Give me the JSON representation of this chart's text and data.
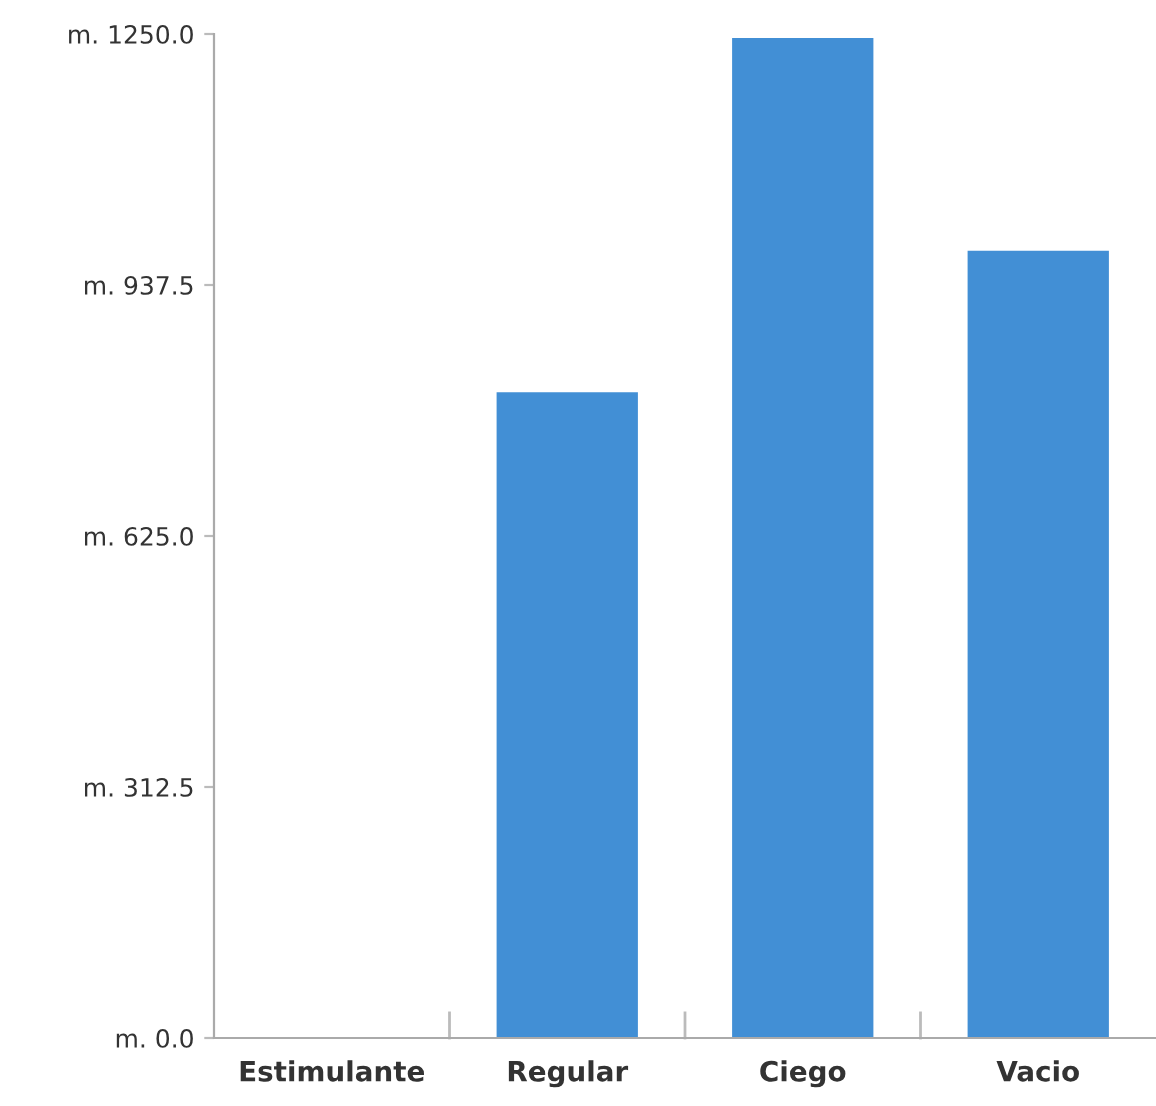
{
  "chart_data": {
    "type": "bar",
    "categories": [
      "Estimulante",
      "Regular",
      "Ciego",
      "Vacio"
    ],
    "values": [
      0,
      804,
      1245,
      980
    ],
    "color": "#428fd5",
    "ylim": [
      0,
      1250
    ],
    "yticks": [
      {
        "value": 0,
        "label": "m. 0.0"
      },
      {
        "value": 312.5,
        "label": "m. 312.5"
      },
      {
        "value": 625,
        "label": "m. 625.0"
      },
      {
        "value": 937.5,
        "label": "m. 937.5"
      },
      {
        "value": 1250,
        "label": "m. 1250.0"
      }
    ],
    "grid": false
  }
}
